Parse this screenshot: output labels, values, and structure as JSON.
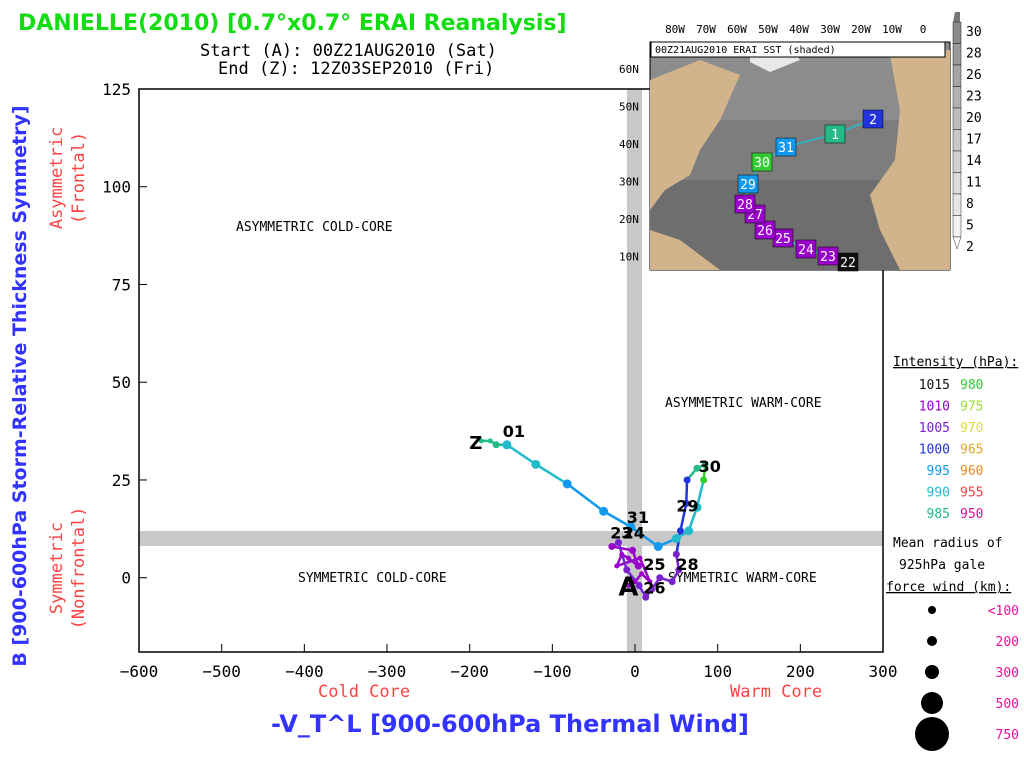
{
  "header": {
    "title": "DANIELLE(2010) [0.7°x0.7° ERAI Reanalysis]",
    "start": "Start (A): 00Z21AUG2010 (Sat)",
    "end": "End (Z): 12Z03SEP2010 (Fri)"
  },
  "colors": {
    "title": "#11dd11",
    "axis_title": "#3333ff",
    "side_label": "#ff4444",
    "band": "#c8c8c8",
    "pink": "#ee1199"
  },
  "chart_data": {
    "type": "scatter",
    "xlabel": "-V_T^L [900-600hPa Thermal Wind]",
    "ylabel": "B [900-600hPa Storm-Relative Thickness Symmetry]",
    "xlim": [
      -600,
      300
    ],
    "ylim": [
      -19,
      125
    ],
    "x_ticks": [
      -600,
      -500,
      -400,
      -300,
      -200,
      -100,
      0,
      100,
      200,
      300
    ],
    "y_ticks": [
      0,
      25,
      50,
      75,
      100,
      125
    ],
    "x_sublabels": {
      "left": "Cold Core",
      "right": "Warm Core"
    },
    "y_sublabels": {
      "top": [
        "Asymmetric",
        "(Frontal)"
      ],
      "bottom": [
        "Symmetric",
        "(Nonfrontal)"
      ]
    },
    "quadrants": {
      "top_left": "ASYMMETRIC COLD-CORE",
      "top_right": "ASYMMETRIC WARM-CORE",
      "bottom_left": "SYMMETRIC COLD-CORE",
      "bottom_right": "SYMMETRIC WARM-CORE"
    },
    "start_marker": "A",
    "end_marker": "Z",
    "track": [
      {
        "x": -8,
        "y": -2,
        "p": 1008,
        "r": 100
      },
      {
        "x": 0,
        "y": -1,
        "p": 1008,
        "r": 100
      },
      {
        "x": 8,
        "y": 1,
        "p": 1007,
        "r": 100
      },
      {
        "x": 18,
        "y": -1,
        "p": 1006,
        "r": 100
      },
      {
        "x": 6,
        "y": 5,
        "p": 1006,
        "r": 100
      },
      {
        "x": -22,
        "y": 3,
        "p": 1007,
        "r": 100
      },
      {
        "x": -16,
        "y": 6,
        "p": 1007,
        "r": 100
      },
      {
        "x": -8,
        "y": 5,
        "p": 1006,
        "r": 100
      },
      {
        "x": 4,
        "y": 3,
        "p": 1005,
        "r": 150
      },
      {
        "x": -3,
        "y": 7,
        "p": 1005,
        "r": 150
      },
      {
        "x": -28,
        "y": 8,
        "p": 1006,
        "r": 150
      },
      {
        "x": -20,
        "y": 9,
        "p": 1004,
        "r": 150
      },
      {
        "x": -10,
        "y": 2,
        "p": 1004,
        "r": 150
      },
      {
        "x": 5,
        "y": -2,
        "p": 1003,
        "r": 150
      },
      {
        "x": 13,
        "y": -5,
        "p": 1003,
        "r": 150
      },
      {
        "x": 20,
        "y": -3,
        "p": 1002,
        "r": 150
      },
      {
        "x": 30,
        "y": 0,
        "p": 1002,
        "r": 150
      },
      {
        "x": 45,
        "y": -1,
        "p": 1001,
        "r": 150
      },
      {
        "x": 53,
        "y": 2,
        "p": 1000,
        "r": 150
      },
      {
        "x": 50,
        "y": 6,
        "p": 1000,
        "r": 150
      },
      {
        "x": 55,
        "y": 12,
        "p": 999,
        "r": 150
      },
      {
        "x": 62,
        "y": 19,
        "p": 998,
        "r": 150
      },
      {
        "x": 63,
        "y": 25,
        "p": 997,
        "r": 150
      },
      {
        "x": 75,
        "y": 28,
        "p": 982,
        "r": 150
      },
      {
        "x": 85,
        "y": 29,
        "p": 981,
        "r": 150
      },
      {
        "x": 83,
        "y": 25,
        "p": 979,
        "r": 150
      },
      {
        "x": 75,
        "y": 18,
        "p": 986,
        "r": 200
      },
      {
        "x": 65,
        "y": 12,
        "p": 987,
        "r": 200
      },
      {
        "x": 50,
        "y": 10,
        "p": 989,
        "r": 200
      },
      {
        "x": 28,
        "y": 8,
        "p": 990,
        "r": 200
      },
      {
        "x": -5,
        "y": 13,
        "p": 992,
        "r": 200
      },
      {
        "x": -38,
        "y": 17,
        "p": 993,
        "r": 200
      },
      {
        "x": -82,
        "y": 24,
        "p": 990,
        "r": 200
      },
      {
        "x": -120,
        "y": 29,
        "p": 988,
        "r": 200
      },
      {
        "x": -155,
        "y": 34,
        "p": 986,
        "r": 200
      },
      {
        "x": -168,
        "y": 34,
        "p": 984,
        "r": 150
      },
      {
        "x": -175,
        "y": 35,
        "p": 983,
        "r": 100
      },
      {
        "x": -186,
        "y": 35,
        "p": 983,
        "r": 100
      }
    ],
    "day_labels": [
      {
        "text": "23",
        "x": -30,
        "y": 10
      },
      {
        "text": "24",
        "x": -15,
        "y": 10
      },
      {
        "text": "25",
        "x": 10,
        "y": 2
      },
      {
        "text": "26",
        "x": 10,
        "y": -4
      },
      {
        "text": "28",
        "x": 50,
        "y": 2
      },
      {
        "text": "29",
        "x": 50,
        "y": 17
      },
      {
        "text": "30",
        "x": 77,
        "y": 27
      },
      {
        "text": "31",
        "x": -10,
        "y": 14
      },
      {
        "text": "01",
        "x": -160,
        "y": 36
      }
    ],
    "legend": {
      "intensity_title": "Intensity (hPa):",
      "intensity": [
        {
          "left": "1015",
          "left_color": "#111111",
          "right": "980",
          "right_color": "#33cc33"
        },
        {
          "left": "1010",
          "left_color": "#9900cc",
          "right": "975",
          "right_color": "#99dd33"
        },
        {
          "left": "1005",
          "left_color": "#7722cc",
          "right": "970",
          "right_color": "#dddd33"
        },
        {
          "left": "1000",
          "left_color": "#2233dd",
          "right": "965",
          "right_color": "#ddaa33"
        },
        {
          "left": "995",
          "left_color": "#1199ee",
          "right": "960",
          "right_color": "#ee8822"
        },
        {
          "left": "990",
          "left_color": "#22bbcc",
          "right": "955",
          "right_color": "#ee4444"
        },
        {
          "left": "985",
          "left_color": "#22bb88",
          "right": "950",
          "right_color": "#dd1199"
        }
      ],
      "radius_title": [
        "Mean radius of",
        "925hPa gale",
        "force wind (km):"
      ],
      "radius": [
        {
          "label": "<100",
          "size": 4
        },
        {
          "label": "200",
          "size": 5
        },
        {
          "label": "300",
          "size": 7
        },
        {
          "label": "500",
          "size": 11
        },
        {
          "label": "750",
          "size": 17
        }
      ]
    },
    "inset_map": {
      "title": "00Z21AUG2010 ERAI SST (shaded)",
      "lon_labels": [
        "80W",
        "70W",
        "60W",
        "50W",
        "40W",
        "30W",
        "20W",
        "10W",
        "0"
      ],
      "lat_labels": [
        "60N",
        "50N",
        "40N",
        "30N",
        "20N",
        "10N"
      ],
      "colorbar": [
        "30",
        "28",
        "26",
        "23",
        "20",
        "17",
        "14",
        "11",
        "8",
        "5",
        "2"
      ],
      "track_days": [
        {
          "day": "22",
          "color": "#111111"
        },
        {
          "day": "23",
          "color": "#9900cc"
        },
        {
          "day": "24",
          "color": "#9900cc"
        },
        {
          "day": "25",
          "color": "#9900cc"
        },
        {
          "day": "26",
          "color": "#9900cc"
        },
        {
          "day": "27",
          "color": "#9900cc"
        },
        {
          "day": "28",
          "color": "#9900cc"
        },
        {
          "day": "29",
          "color": "#1199ee"
        },
        {
          "day": "30",
          "color": "#33cc33"
        },
        {
          "day": "31",
          "color": "#1199ee"
        },
        {
          "day": "1",
          "color": "#22bb88"
        },
        {
          "day": "2",
          "color": "#2233dd"
        }
      ]
    }
  }
}
